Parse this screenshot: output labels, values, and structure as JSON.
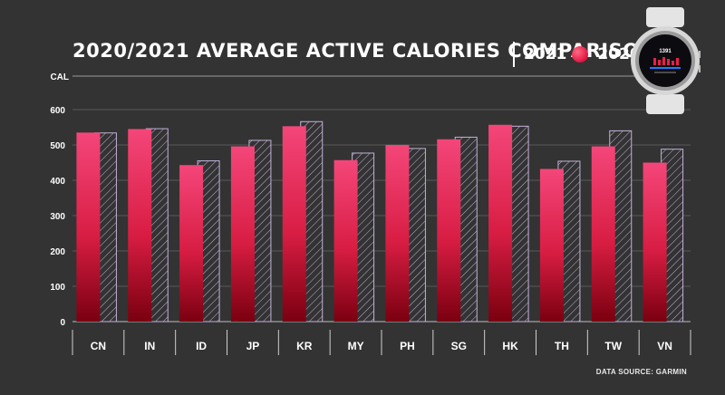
{
  "chart_data": {
    "type": "bar",
    "title": "2020/2021 AVERAGE ACTIVE CALORIES COMPARISON",
    "ylabel": "CAL",
    "ylim": [
      0,
      600
    ],
    "yticks": [
      0,
      100,
      200,
      300,
      400,
      500,
      600
    ],
    "grid": true,
    "legend_position": "top-right",
    "categories": [
      "CN",
      "IN",
      "ID",
      "JP",
      "KR",
      "MY",
      "PH",
      "SG",
      "HK",
      "TH",
      "TW",
      "VN"
    ],
    "series": [
      {
        "name": "2021",
        "fill": "solid",
        "color": "#e8204a",
        "values": [
          535,
          545,
          443,
          496,
          553,
          457,
          500,
          516,
          557,
          432,
          496,
          450
        ]
      },
      {
        "name": "2020",
        "fill": "hatched",
        "color": "#b59ad0",
        "values": [
          534,
          546,
          455,
          513,
          566,
          477,
          490,
          522,
          553,
          454,
          540,
          488
        ]
      }
    ]
  },
  "source_note": "DATA SOURCE: GARMIN",
  "watch": {
    "calories": "1391"
  },
  "colors": {
    "background": "#333333",
    "bar_top": "#f4467a",
    "bar_bottom": "#7a0010",
    "hatch_border": "#c3b2d9"
  }
}
